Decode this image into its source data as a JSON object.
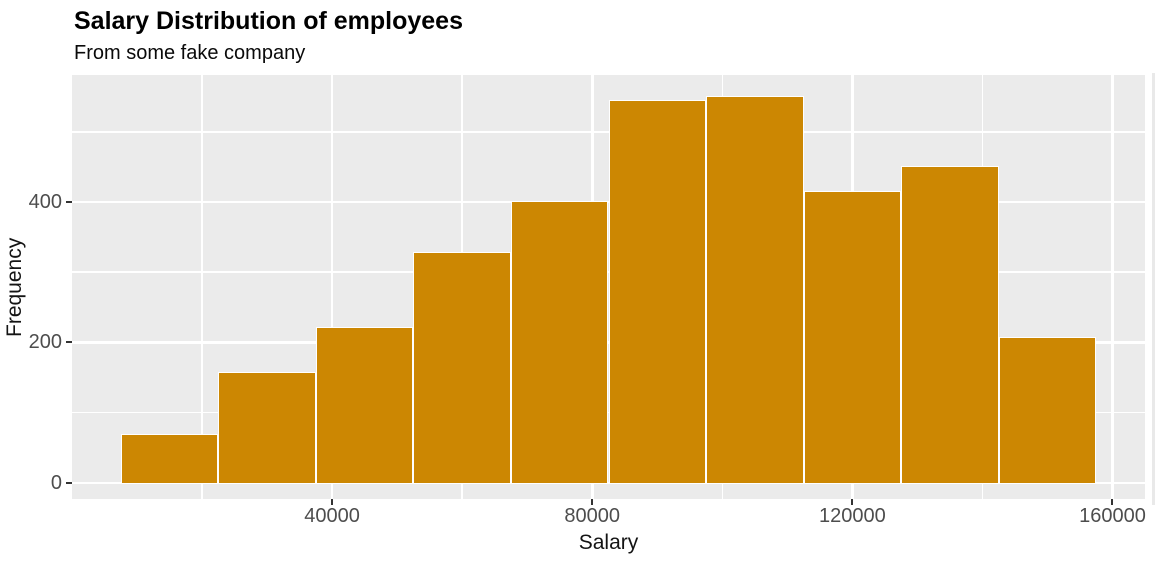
{
  "chart_data": {
    "type": "bar",
    "subtype": "histogram",
    "title": "Salary Distribution of employees",
    "subtitle": "From some fake company",
    "xlabel": "Salary",
    "ylabel": "Frequency",
    "bin_width": 15000,
    "bin_centers": [
      15000,
      30000,
      45000,
      60000,
      75000,
      90000,
      105000,
      120000,
      135000,
      150000
    ],
    "frequencies": [
      68,
      156,
      220,
      327,
      399,
      543,
      549,
      413,
      449,
      206
    ],
    "x_ticks": [
      40000,
      80000,
      120000,
      160000
    ],
    "x_tick_labels": [
      "40000",
      "80000",
      "120000",
      "160000"
    ],
    "x_minor_gridlines": [
      20000,
      60000,
      100000,
      140000
    ],
    "y_ticks": [
      0,
      200,
      400
    ],
    "y_tick_labels": [
      "0",
      "200",
      "400"
    ],
    "y_minor_gridlines": [
      100,
      300,
      500
    ],
    "x_range": [
      0,
      165000
    ],
    "y_range": [
      -23,
      581
    ],
    "grid": "on",
    "legend": "none",
    "colors": {
      "bar_fill": "#CC8702",
      "bar_stroke": "#FFFFFF",
      "panel_bg": "#EBEBEB",
      "grid": "#FFFFFF",
      "tick_label": "#4D4D4D",
      "axis_title": "#141414",
      "title": "#000000",
      "tick_mark": "#333333",
      "figure_bg": "#FFFFFF"
    }
  }
}
